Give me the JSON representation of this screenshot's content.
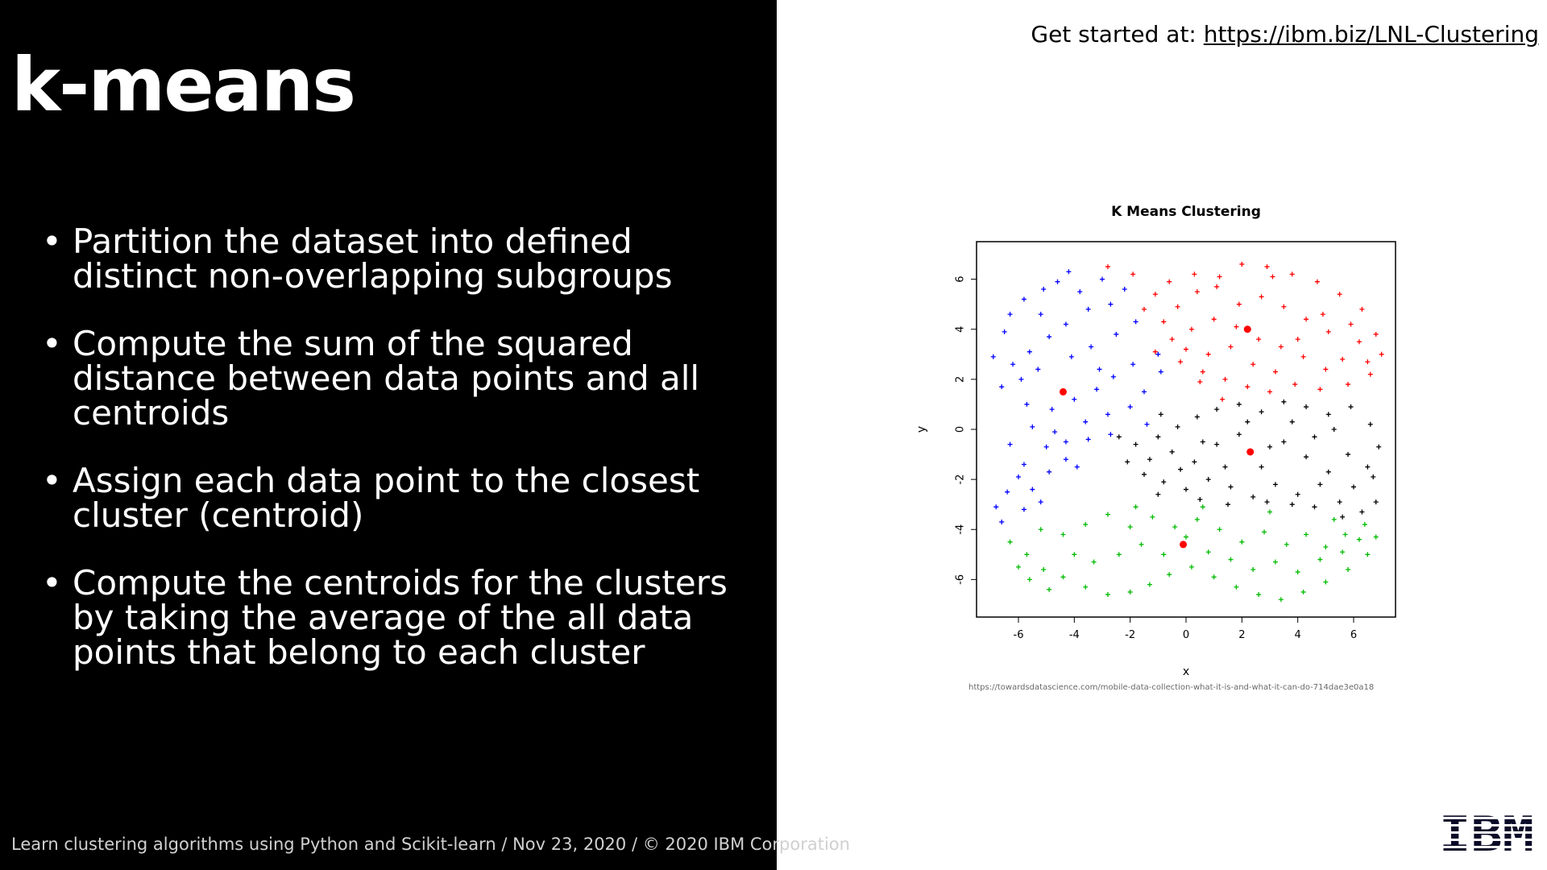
{
  "slide": {
    "title": "k-means",
    "bullets": [
      "Partition the dataset into defined distinct non-overlapping subgroups",
      "Compute the sum of the squared distance between data points and all centroids",
      "Assign each data point to the closest cluster (centroid)",
      "Compute the centroids for the clusters by taking the average of the all data points that belong to each cluster"
    ],
    "footer": "Learn clustering algorithms using Python and Scikit-learn / Nov 23, 2020 / © 2020 IBM Corporation",
    "get_started_label": "Get started at:",
    "get_started_link": "https://ibm.biz/LNL-Clustering",
    "source_url": "https://towardsdatascience.com/mobile-data-collection-what-it-is-and-what-it-can-do-714dae3e0a18",
    "logo_text": "IBM"
  },
  "chart_data": {
    "type": "scatter",
    "title": "K Means Clustering",
    "xlabel": "x",
    "ylabel": "y",
    "xlim": [
      -7.5,
      7.5
    ],
    "ylim": [
      -7.5,
      7.5
    ],
    "xticks": [
      -6,
      -4,
      -2,
      0,
      2,
      4,
      6
    ],
    "yticks": [
      -6,
      -4,
      -2,
      0,
      2,
      4,
      6
    ],
    "grid": false,
    "point_marker": "+",
    "cluster_colors": [
      "#0000ff",
      "#ff0000",
      "#000000",
      "#00bb00"
    ],
    "centroid_color": "#ff0000",
    "centroids": [
      {
        "x": -4.4,
        "y": 1.5
      },
      {
        "x": 2.2,
        "y": 4.0
      },
      {
        "x": 2.3,
        "y": -0.9
      },
      {
        "x": -0.1,
        "y": -4.6
      }
    ],
    "sample_points": [
      [
        [
          -5.8,
          5.2
        ],
        [
          -6.5,
          3.9
        ],
        [
          -5.2,
          4.6
        ],
        [
          -4.6,
          5.9
        ],
        [
          -3.8,
          5.5
        ],
        [
          -6.2,
          2.6
        ],
        [
          -5.6,
          3.1
        ],
        [
          -4.9,
          3.7
        ],
        [
          -4.3,
          4.2
        ],
        [
          -3.5,
          4.8
        ],
        [
          -2.7,
          5.0
        ],
        [
          -6.6,
          1.7
        ],
        [
          -5.9,
          2.0
        ],
        [
          -5.3,
          2.4
        ],
        [
          -4.1,
          2.9
        ],
        [
          -3.4,
          3.3
        ],
        [
          -2.5,
          3.8
        ],
        [
          -1.8,
          4.3
        ],
        [
          -1.0,
          3.0
        ],
        [
          -0.9,
          2.3
        ],
        [
          -5.7,
          1.0
        ],
        [
          -4.8,
          0.8
        ],
        [
          -4.0,
          1.2
        ],
        [
          -3.2,
          1.6
        ],
        [
          -2.6,
          2.1
        ],
        [
          -1.9,
          2.6
        ],
        [
          -5.5,
          0.1
        ],
        [
          -4.7,
          -0.1
        ],
        [
          -3.6,
          0.3
        ],
        [
          -2.8,
          0.6
        ],
        [
          -2.0,
          0.9
        ],
        [
          -1.4,
          0.2
        ],
        [
          -6.3,
          -0.6
        ],
        [
          -5.8,
          -1.4
        ],
        [
          -5.0,
          -0.7
        ],
        [
          -4.3,
          -0.5
        ],
        [
          -3.5,
          -0.4
        ],
        [
          -2.7,
          -0.2
        ],
        [
          -6.8,
          -3.1
        ],
        [
          -6.4,
          -2.5
        ],
        [
          -6.0,
          -1.9
        ],
        [
          -5.5,
          -2.4
        ],
        [
          -4.9,
          -1.7
        ],
        [
          -4.3,
          -1.2
        ],
        [
          -6.6,
          -3.7
        ],
        [
          -5.8,
          -3.2
        ],
        [
          -5.2,
          -2.9
        ],
        [
          -3.9,
          -1.5
        ],
        [
          -6.9,
          2.9
        ],
        [
          -4.2,
          6.3
        ],
        [
          -3.0,
          6.0
        ],
        [
          -2.2,
          5.6
        ],
        [
          -6.3,
          4.6
        ],
        [
          -5.1,
          5.6
        ],
        [
          -3.1,
          2.4
        ],
        [
          -1.5,
          1.5
        ]
      ],
      [
        [
          -2.8,
          6.5
        ],
        [
          -1.9,
          6.2
        ],
        [
          -1.1,
          5.4
        ],
        [
          -0.3,
          4.9
        ],
        [
          0.4,
          5.5
        ],
        [
          1.2,
          6.1
        ],
        [
          2.0,
          6.6
        ],
        [
          2.9,
          6.5
        ],
        [
          3.8,
          6.2
        ],
        [
          4.7,
          5.9
        ],
        [
          5.5,
          5.4
        ],
        [
          6.3,
          4.8
        ],
        [
          6.8,
          3.8
        ],
        [
          7.0,
          3.0
        ],
        [
          6.6,
          2.2
        ],
        [
          5.8,
          1.8
        ],
        [
          5.0,
          2.4
        ],
        [
          4.2,
          2.9
        ],
        [
          3.4,
          3.3
        ],
        [
          2.6,
          3.6
        ],
        [
          1.8,
          4.1
        ],
        [
          1.0,
          4.4
        ],
        [
          0.2,
          4.0
        ],
        [
          -0.5,
          3.6
        ],
        [
          -1.1,
          3.1
        ],
        [
          -0.2,
          2.7
        ],
        [
          0.6,
          2.3
        ],
        [
          1.4,
          2.0
        ],
        [
          2.2,
          1.7
        ],
        [
          3.0,
          1.5
        ],
        [
          3.9,
          1.8
        ],
        [
          4.8,
          1.6
        ],
        [
          5.6,
          2.8
        ],
        [
          6.2,
          3.5
        ],
        [
          5.1,
          3.9
        ],
        [
          4.3,
          4.4
        ],
        [
          3.5,
          4.9
        ],
        [
          2.7,
          5.3
        ],
        [
          1.9,
          5.0
        ],
        [
          1.1,
          5.7
        ],
        [
          0.3,
          6.2
        ],
        [
          -0.6,
          5.9
        ],
        [
          -1.5,
          4.8
        ],
        [
          -0.8,
          4.3
        ],
        [
          0.0,
          3.2
        ],
        [
          0.8,
          3.0
        ],
        [
          1.6,
          3.3
        ],
        [
          2.4,
          2.6
        ],
        [
          3.2,
          2.3
        ],
        [
          4.0,
          3.6
        ],
        [
          4.9,
          4.6
        ],
        [
          5.9,
          4.2
        ],
        [
          6.5,
          2.7
        ],
        [
          3.1,
          6.1
        ],
        [
          0.5,
          1.9
        ],
        [
          1.3,
          1.2
        ]
      ],
      [
        [
          -1.8,
          -0.6
        ],
        [
          -1.0,
          -0.3
        ],
        [
          -0.3,
          0.1
        ],
        [
          0.4,
          0.5
        ],
        [
          1.1,
          0.8
        ],
        [
          1.9,
          1.0
        ],
        [
          2.7,
          0.7
        ],
        [
          3.5,
          1.1
        ],
        [
          4.3,
          0.9
        ],
        [
          5.1,
          0.6
        ],
        [
          5.9,
          0.9
        ],
        [
          6.6,
          0.2
        ],
        [
          6.9,
          -0.7
        ],
        [
          6.5,
          -1.5
        ],
        [
          6.0,
          -2.3
        ],
        [
          6.8,
          -2.9
        ],
        [
          6.3,
          -3.3
        ],
        [
          5.5,
          -2.9
        ],
        [
          4.8,
          -2.2
        ],
        [
          4.0,
          -2.6
        ],
        [
          3.2,
          -2.2
        ],
        [
          2.4,
          -2.7
        ],
        [
          1.6,
          -2.3
        ],
        [
          0.8,
          -2.0
        ],
        [
          0.0,
          -2.4
        ],
        [
          -0.8,
          -2.1
        ],
        [
          -1.5,
          -1.8
        ],
        [
          -2.1,
          -1.3
        ],
        [
          -1.3,
          -1.2
        ],
        [
          -0.5,
          -0.9
        ],
        [
          0.3,
          -1.3
        ],
        [
          1.1,
          -0.6
        ],
        [
          1.9,
          -0.2
        ],
        [
          2.7,
          -1.5
        ],
        [
          3.5,
          -0.5
        ],
        [
          4.3,
          -1.1
        ],
        [
          5.1,
          -1.7
        ],
        [
          5.8,
          -1.0
        ],
        [
          5.3,
          0.0
        ],
        [
          4.6,
          -0.3
        ],
        [
          3.8,
          0.3
        ],
        [
          3.0,
          -0.7
        ],
        [
          2.2,
          0.3
        ],
        [
          1.4,
          -1.5
        ],
        [
          0.6,
          -0.5
        ],
        [
          -0.2,
          -1.6
        ],
        [
          -1.0,
          -2.6
        ],
        [
          0.5,
          -2.8
        ],
        [
          1.5,
          -3.0
        ],
        [
          3.8,
          -3.0
        ],
        [
          4.6,
          -3.1
        ],
        [
          5.6,
          -3.5
        ],
        [
          6.7,
          -1.9
        ],
        [
          -2.4,
          -0.3
        ],
        [
          -0.9,
          0.6
        ],
        [
          2.9,
          -2.9
        ]
      ],
      [
        [
          -6.3,
          -4.5
        ],
        [
          -5.7,
          -5.0
        ],
        [
          -5.1,
          -5.6
        ],
        [
          -4.4,
          -5.9
        ],
        [
          -3.6,
          -6.3
        ],
        [
          -2.8,
          -6.6
        ],
        [
          -2.0,
          -6.5
        ],
        [
          -1.3,
          -6.2
        ],
        [
          -0.6,
          -5.8
        ],
        [
          0.2,
          -5.5
        ],
        [
          1.0,
          -5.9
        ],
        [
          1.8,
          -6.3
        ],
        [
          2.6,
          -6.6
        ],
        [
          3.4,
          -6.8
        ],
        [
          4.2,
          -6.5
        ],
        [
          5.0,
          -6.1
        ],
        [
          5.8,
          -5.6
        ],
        [
          6.5,
          -5.0
        ],
        [
          6.8,
          -4.3
        ],
        [
          6.4,
          -3.8
        ],
        [
          5.7,
          -4.2
        ],
        [
          5.0,
          -4.7
        ],
        [
          4.3,
          -4.2
        ],
        [
          3.6,
          -4.6
        ],
        [
          2.8,
          -4.1
        ],
        [
          2.0,
          -4.5
        ],
        [
          1.2,
          -4.0
        ],
        [
          0.4,
          -3.6
        ],
        [
          -0.4,
          -3.9
        ],
        [
          -1.2,
          -3.5
        ],
        [
          -2.0,
          -3.9
        ],
        [
          -2.8,
          -3.4
        ],
        [
          -3.6,
          -3.8
        ],
        [
          -4.4,
          -4.2
        ],
        [
          -5.2,
          -4.0
        ],
        [
          -6.0,
          -5.5
        ],
        [
          -4.9,
          -6.4
        ],
        [
          -3.3,
          -5.3
        ],
        [
          -2.4,
          -5.0
        ],
        [
          -1.6,
          -4.6
        ],
        [
          -0.8,
          -5.0
        ],
        [
          0.0,
          -4.3
        ],
        [
          0.8,
          -4.9
        ],
        [
          1.6,
          -5.2
        ],
        [
          2.4,
          -5.6
        ],
        [
          3.2,
          -5.3
        ],
        [
          4.0,
          -5.7
        ],
        [
          4.8,
          -5.2
        ],
        [
          5.6,
          -4.9
        ],
        [
          6.2,
          -4.4
        ],
        [
          -5.6,
          -6.0
        ],
        [
          -1.8,
          -3.1
        ],
        [
          0.6,
          -3.1
        ],
        [
          3.0,
          -3.3
        ],
        [
          5.3,
          -3.6
        ],
        [
          -4.0,
          -5.0
        ]
      ]
    ]
  }
}
